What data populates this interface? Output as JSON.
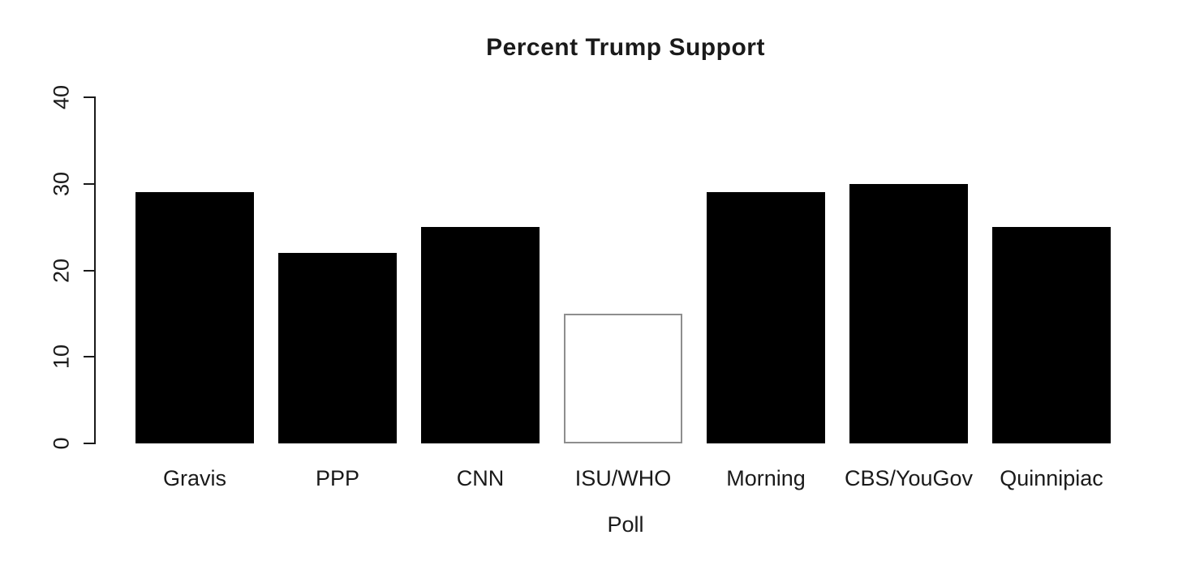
{
  "chart_data": {
    "type": "bar",
    "title": "Percent Trump Support",
    "xlabel": "Poll",
    "ylabel": "",
    "categories": [
      "Gravis",
      "PPP",
      "CNN",
      "ISU/WHO",
      "Morning",
      "CBS/YouGov",
      "Quinnipiac"
    ],
    "values": [
      29,
      22,
      25,
      15,
      29,
      30,
      25
    ],
    "bar_fills": [
      "#000000",
      "#000000",
      "#000000",
      "#ffffff",
      "#000000",
      "#000000",
      "#000000"
    ],
    "white_bar_border": "#8e8e8e",
    "yticks": [
      0,
      10,
      20,
      30,
      40
    ],
    "ylim": [
      0,
      40
    ],
    "grid": false,
    "legend": "none",
    "colors": {
      "foreground": "#1a1a1a",
      "background": "#ffffff"
    }
  }
}
